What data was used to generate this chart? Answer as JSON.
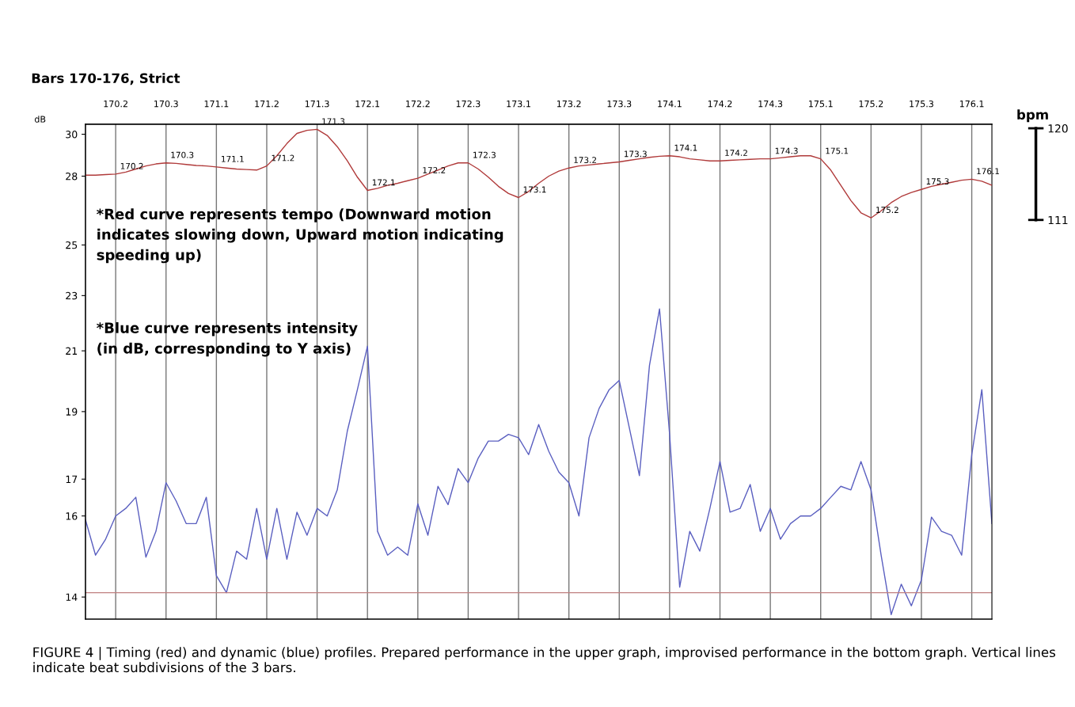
{
  "chart_data": {
    "type": "line",
    "title": "Bars 170-176, Strict",
    "ylabel": "dB",
    "y2label": "bpm",
    "categories": [
      null,
      null,
      null,
      "170.2",
      null,
      null,
      null,
      null,
      "170.3",
      null,
      null,
      null,
      null,
      "171.1",
      null,
      null,
      null,
      null,
      "171.2",
      null,
      null,
      null,
      null,
      "171.3",
      null,
      null,
      null,
      null,
      "172.1",
      null,
      null,
      null,
      null,
      "172.2",
      null,
      null,
      null,
      null,
      "172.3",
      null,
      null,
      null,
      null,
      "173.1",
      null,
      null,
      null,
      null,
      "173.2",
      null,
      null,
      null,
      null,
      "173.3",
      null,
      null,
      null,
      null,
      "174.1",
      null,
      null,
      null,
      null,
      "174.2",
      null,
      null,
      null,
      null,
      "174.3",
      null,
      null,
      null,
      null,
      "175.1",
      null,
      null,
      null,
      null,
      "175.2",
      null,
      null,
      null,
      null,
      "175.3",
      null,
      null,
      null,
      null,
      "176.1",
      null,
      null
    ],
    "log": "y",
    "ylim": [
      13.5,
      30.5
    ],
    "yticks": [
      14,
      16,
      17,
      19,
      21,
      23,
      25,
      28,
      30
    ],
    "y2lim": [
      71.8,
      120.4
    ],
    "y2ticks": [
      111,
      120
    ],
    "grid": "x",
    "ref_lines": [
      {
        "axis": "y",
        "value": 14.1,
        "color": "#c08080"
      }
    ],
    "series": [
      {
        "axis": "y2",
        "color": "#b03a3a",
        "values": [
          115.4,
          115.4,
          115.45,
          115.5,
          115.7,
          116.0,
          116.3,
          116.5,
          116.6,
          116.55,
          116.45,
          116.35,
          116.3,
          116.2,
          116.1,
          116.0,
          115.95,
          115.9,
          116.3,
          117.3,
          118.5,
          119.5,
          119.8,
          119.9,
          119.3,
          118.2,
          116.8,
          115.2,
          113.9,
          114.1,
          114.4,
          114.6,
          114.85,
          115.1,
          115.5,
          115.9,
          116.3,
          116.6,
          116.6,
          116.0,
          115.2,
          114.3,
          113.6,
          113.2,
          113.8,
          114.6,
          115.3,
          115.8,
          116.1,
          116.3,
          116.4,
          116.5,
          116.6,
          116.7,
          116.85,
          117.0,
          117.15,
          117.25,
          117.3,
          117.2,
          117.0,
          116.9,
          116.8,
          116.8,
          116.85,
          116.9,
          116.95,
          117.0,
          117.0,
          117.1,
          117.2,
          117.3,
          117.3,
          117.0,
          115.9,
          114.4,
          112.9,
          111.7,
          111.2,
          111.9,
          112.7,
          113.3,
          113.7,
          114.0,
          114.3,
          114.5,
          114.7,
          114.9,
          115.0,
          114.8,
          114.4
        ]
      },
      {
        "color": "#5a5fc0",
        "values": [
          15.9,
          15.0,
          15.4,
          16.0,
          16.2,
          16.5,
          14.95,
          15.6,
          16.9,
          16.4,
          15.8,
          15.8,
          16.5,
          14.5,
          14.1,
          15.1,
          14.9,
          16.2,
          14.9,
          16.2,
          14.9,
          16.1,
          15.5,
          16.2,
          16.0,
          16.7,
          18.4,
          19.7,
          21.16,
          15.6,
          15.0,
          15.2,
          15.0,
          16.32,
          15.5,
          16.8,
          16.3,
          17.3,
          16.9,
          17.6,
          18.1,
          18.1,
          18.3,
          18.2,
          17.7,
          18.6,
          17.8,
          17.2,
          16.9,
          16.0,
          18.2,
          19.1,
          19.7,
          20.0,
          18.5,
          17.1,
          20.5,
          22.5,
          18.3,
          14.23,
          15.6,
          15.1,
          16.2,
          17.5,
          16.1,
          16.2,
          16.85,
          15.6,
          16.2,
          15.4,
          15.8,
          16.0,
          16.0,
          16.2,
          16.5,
          16.8,
          16.7,
          17.5,
          16.7,
          15.0,
          13.6,
          14.3,
          13.8,
          14.4,
          15.97,
          15.6,
          15.5,
          15.0,
          17.7,
          19.7,
          15.8
        ]
      }
    ],
    "annotations": [
      "*Red curve represents tempo (Downward motion\nindicates slowing down, Upward motion indicating\nspeeding up)",
      "*Blue curve represents intensity\n(in dB, corresponding to Y axis)",
      "FIGURE 4 | Timing (red) and dynamic (blue) profiles. Prepared performance in the upper graph, improvised performance in the bottom graph. Vertical lines indicate beat subdivisions of the 3 bars.",
      "170.2",
      "170.3",
      "171.1",
      "171.2",
      "171.3",
      "172.1",
      "172.2",
      "172.3",
      "173.1",
      "173.2",
      "173.3",
      "174.1",
      "174.2",
      "174.3",
      "175.1",
      "175.2",
      "175.3",
      "176.1"
    ]
  }
}
